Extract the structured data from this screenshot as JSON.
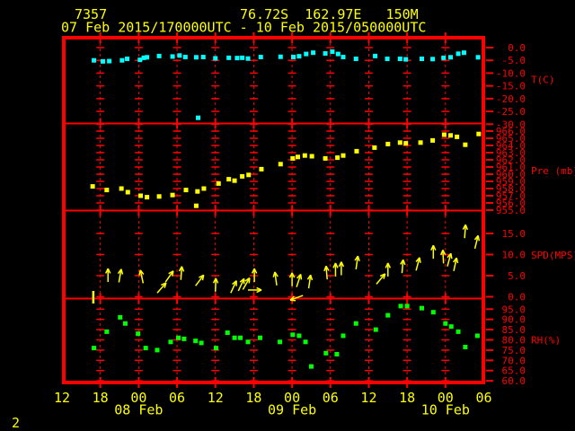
{
  "header": {
    "station_id": "7357",
    "location": "76.72S  162.97E   150M",
    "time_range": "07 Feb 2015/170000UTC - 10 Feb 2015/050000UTC"
  },
  "footer": {
    "page_number": "2"
  },
  "colors": {
    "background": "#000000",
    "grid": "#ff0000",
    "text_primary": "#ffff00",
    "temperature": "#00ffff",
    "pressure": "#ffff00",
    "wind": "#ffff00",
    "humidity": "#00ff00"
  },
  "chart_data": {
    "type": "scatter",
    "title": "7357  76.72S 162.97E 150M  07 Feb 2015/170000UTC - 10 Feb 2015/050000UTC",
    "x_axis": {
      "hours_span": 66,
      "tick_interval_hours": 6,
      "start": "07 Feb 12:00 UTC",
      "tick_labels": [
        "12",
        "18",
        "00",
        "06",
        "12",
        "18",
        "00",
        "06",
        "12",
        "18",
        "00",
        "06"
      ],
      "date_labels": [
        {
          "label": "08 Feb",
          "tick": 2
        },
        {
          "label": "09 Feb",
          "tick": 6
        },
        {
          "label": "10 Feb",
          "tick": 10
        }
      ]
    },
    "panels": [
      {
        "id": "temperature",
        "unit": "T(C)",
        "tick_labels": [
          "0.0",
          "-5.0",
          "-10.0",
          "-15.0",
          "-20.0",
          "-25.0",
          "-30.0"
        ],
        "tick_values": [
          0,
          -5,
          -10,
          -15,
          -20,
          -25,
          -30
        ],
        "points": [
          [
            5.0,
            -5.0
          ],
          [
            6.4,
            -5.4
          ],
          [
            7.4,
            -5.3
          ],
          [
            9.4,
            -5.0
          ],
          [
            10.2,
            -4.4
          ],
          [
            12.2,
            -4.8
          ],
          [
            12.8,
            -4.0
          ],
          [
            13.3,
            -3.8
          ],
          [
            15.2,
            -3.3
          ],
          [
            17.3,
            -3.5
          ],
          [
            18.4,
            -3.1
          ],
          [
            19.3,
            -3.7
          ],
          [
            21.0,
            -3.8
          ],
          [
            21.3,
            -27.5
          ],
          [
            22.1,
            -3.7
          ],
          [
            24.0,
            -4.2
          ],
          [
            26.1,
            -4.0
          ],
          [
            27.4,
            -4.1
          ],
          [
            28.2,
            -4.0
          ],
          [
            29.1,
            -4.3
          ],
          [
            31.1,
            -3.7
          ],
          [
            34.2,
            -3.6
          ],
          [
            36.2,
            -3.7
          ],
          [
            37.1,
            -3.4
          ],
          [
            38.2,
            -2.5
          ],
          [
            39.3,
            -2.0
          ],
          [
            41.2,
            -2.3
          ],
          [
            42.3,
            -1.6
          ],
          [
            43.2,
            -2.5
          ],
          [
            44.0,
            -3.7
          ],
          [
            46.0,
            -4.4
          ],
          [
            49.0,
            -3.3
          ],
          [
            50.9,
            -4.4
          ],
          [
            52.9,
            -4.4
          ],
          [
            53.8,
            -4.6
          ],
          [
            56.3,
            -4.4
          ],
          [
            58.0,
            -4.5
          ],
          [
            59.7,
            -4.0
          ],
          [
            60.8,
            -3.8
          ],
          [
            62.0,
            -2.4
          ],
          [
            62.9,
            -2.0
          ],
          [
            65.1,
            -3.8
          ]
        ]
      },
      {
        "id": "pressure",
        "unit": "Pre (mb)",
        "tick_labels": [
          "966.0",
          "965.0",
          "964.0",
          "963.0",
          "962.0",
          "961.0",
          "960.0",
          "959.0",
          "958.0",
          "957.0",
          "956.0",
          "955.0"
        ],
        "tick_values": [
          966,
          965,
          964,
          963,
          962,
          961,
          960,
          959,
          958,
          957,
          956,
          955
        ],
        "points": [
          [
            4.8,
            958.3
          ],
          [
            7.0,
            957.8
          ],
          [
            9.3,
            958.0
          ],
          [
            10.3,
            957.5
          ],
          [
            12.3,
            957.0
          ],
          [
            13.3,
            956.8
          ],
          [
            15.2,
            956.9
          ],
          [
            17.3,
            957.1
          ],
          [
            19.4,
            957.8
          ],
          [
            21.0,
            955.6
          ],
          [
            21.2,
            957.6
          ],
          [
            22.2,
            958.0
          ],
          [
            24.5,
            958.7
          ],
          [
            26.1,
            959.3
          ],
          [
            27.0,
            959.1
          ],
          [
            28.2,
            959.7
          ],
          [
            29.2,
            959.9
          ],
          [
            31.2,
            960.7
          ],
          [
            34.2,
            961.4
          ],
          [
            36.1,
            962.2
          ],
          [
            36.9,
            962.4
          ],
          [
            38.0,
            962.6
          ],
          [
            39.1,
            962.5
          ],
          [
            41.2,
            962.2
          ],
          [
            43.1,
            962.3
          ],
          [
            44.0,
            962.6
          ],
          [
            46.1,
            963.2
          ],
          [
            48.9,
            963.7
          ],
          [
            51.0,
            964.2
          ],
          [
            52.9,
            964.4
          ],
          [
            53.8,
            964.3
          ],
          [
            56.1,
            964.4
          ],
          [
            58.0,
            964.7
          ],
          [
            59.8,
            965.5
          ],
          [
            60.8,
            965.4
          ],
          [
            61.8,
            965.2
          ],
          [
            63.1,
            964.1
          ],
          [
            65.2,
            965.6
          ]
        ]
      },
      {
        "id": "wind_speed",
        "unit": "SPD(MPS)",
        "tick_labels": [
          "15.0",
          "10.0",
          "5.0",
          "0.0"
        ],
        "tick_values": [
          15,
          10,
          5,
          0
        ],
        "arrow_format": "[hours_from_axis_start, speed_mps, direction_deg_from_up]",
        "arrows": [
          [
            7.2,
            3.5,
            0
          ],
          [
            8.9,
            3.4,
            10
          ],
          [
            12.7,
            3.2,
            -12
          ],
          [
            14.9,
            0.9,
            41
          ],
          [
            16.2,
            3.5,
            35
          ],
          [
            18.6,
            4.0,
            4
          ],
          [
            20.9,
            2.6,
            37
          ],
          [
            24.0,
            1.2,
            2
          ],
          [
            26.4,
            0.9,
            25
          ],
          [
            27.6,
            1.4,
            25
          ],
          [
            28.3,
            1.7,
            30
          ],
          [
            29.1,
            1.6,
            90
          ],
          [
            30.1,
            3.5,
            0
          ],
          [
            33.6,
            2.7,
            -8
          ],
          [
            36.0,
            2.5,
            0
          ],
          [
            36.7,
            2.3,
            18
          ],
          [
            37.7,
            0.3,
            250
          ],
          [
            38.6,
            2.0,
            8
          ],
          [
            41.5,
            4.1,
            -5
          ],
          [
            42.8,
            4.8,
            0
          ],
          [
            43.7,
            5.1,
            0
          ],
          [
            46.0,
            6.5,
            8
          ],
          [
            49.2,
            3.0,
            40
          ],
          [
            51.0,
            4.8,
            0
          ],
          [
            53.2,
            5.6,
            5
          ],
          [
            55.4,
            6.2,
            15
          ],
          [
            58.1,
            9.0,
            0
          ],
          [
            59.7,
            7.9,
            -3
          ],
          [
            60.3,
            7.2,
            15
          ],
          [
            61.3,
            6.1,
            12
          ],
          [
            63.0,
            13.9,
            4
          ],
          [
            64.6,
            11.4,
            14
          ]
        ],
        "calm_marks": [
          4.9
        ]
      },
      {
        "id": "humidity",
        "unit": "RH(%)",
        "tick_labels": [
          "95.0",
          "90.0",
          "85.0",
          "80.0",
          "75.0",
          "70.0",
          "65.0",
          "60.0"
        ],
        "tick_values": [
          95,
          90,
          85,
          80,
          75,
          70,
          65,
          60
        ],
        "points": [
          [
            5.0,
            76
          ],
          [
            7.0,
            84
          ],
          [
            9.1,
            91
          ],
          [
            9.9,
            88
          ],
          [
            11.9,
            83
          ],
          [
            13.1,
            76
          ],
          [
            14.9,
            75
          ],
          [
            17.0,
            79
          ],
          [
            18.2,
            81
          ],
          [
            19.1,
            80.5
          ],
          [
            20.9,
            79.5
          ],
          [
            21.8,
            78.5
          ],
          [
            24.1,
            76
          ],
          [
            25.9,
            83.5
          ],
          [
            27.0,
            81
          ],
          [
            27.9,
            81
          ],
          [
            29.1,
            79
          ],
          [
            31.0,
            81
          ],
          [
            34.1,
            79
          ],
          [
            36.1,
            82.5
          ],
          [
            37.1,
            82
          ],
          [
            38.1,
            79
          ],
          [
            39.0,
            67
          ],
          [
            41.3,
            73.5
          ],
          [
            43.0,
            73
          ],
          [
            44.0,
            82
          ],
          [
            46.0,
            88
          ],
          [
            49.1,
            85
          ],
          [
            51.0,
            92
          ],
          [
            53.0,
            96.5
          ],
          [
            54.0,
            96.5
          ],
          [
            56.3,
            95.5
          ],
          [
            58.1,
            93.5
          ],
          [
            60.0,
            88
          ],
          [
            60.9,
            86.5
          ],
          [
            62.0,
            84
          ],
          [
            63.1,
            76.5
          ],
          [
            65.0,
            82
          ]
        ]
      }
    ]
  }
}
